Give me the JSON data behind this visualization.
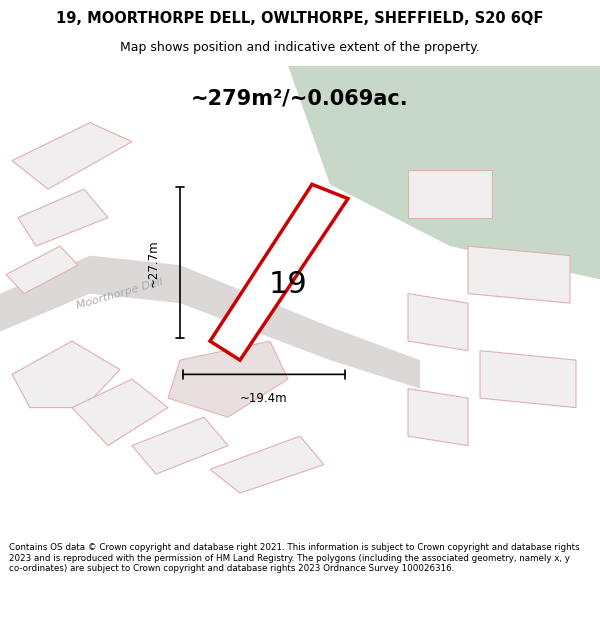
{
  "title_line1": "19, MOORTHORPE DELL, OWLTHORPE, SHEFFIELD, S20 6QF",
  "title_line2": "Map shows position and indicative extent of the property.",
  "area_text": "~279m²/~0.069ac.",
  "label_19": "19",
  "dim_height": "~27.7m",
  "dim_width": "~19.4m",
  "road_label": "Moorthorpe Dell",
  "footer_text": "Contains OS data © Crown copyright and database right 2021. This information is subject to Crown copyright and database rights 2023 and is reproduced with the permission of HM Land Registry. The polygons (including the associated geometry, namely x, y co-ordinates) are subject to Crown copyright and database rights 2023 Ordnance Survey 100026316.",
  "bg_map_color": "#dce5dc",
  "bg_road_color": "#f0eeee",
  "road_fill": "#e8e0e0",
  "plot_fill": "#f5f2f2",
  "plot_outline": "#cc0000",
  "other_plot_outline": "#e8b0b0",
  "dim_line_color": "#000000",
  "title_bg": "#ffffff",
  "footer_bg": "#ffffff"
}
